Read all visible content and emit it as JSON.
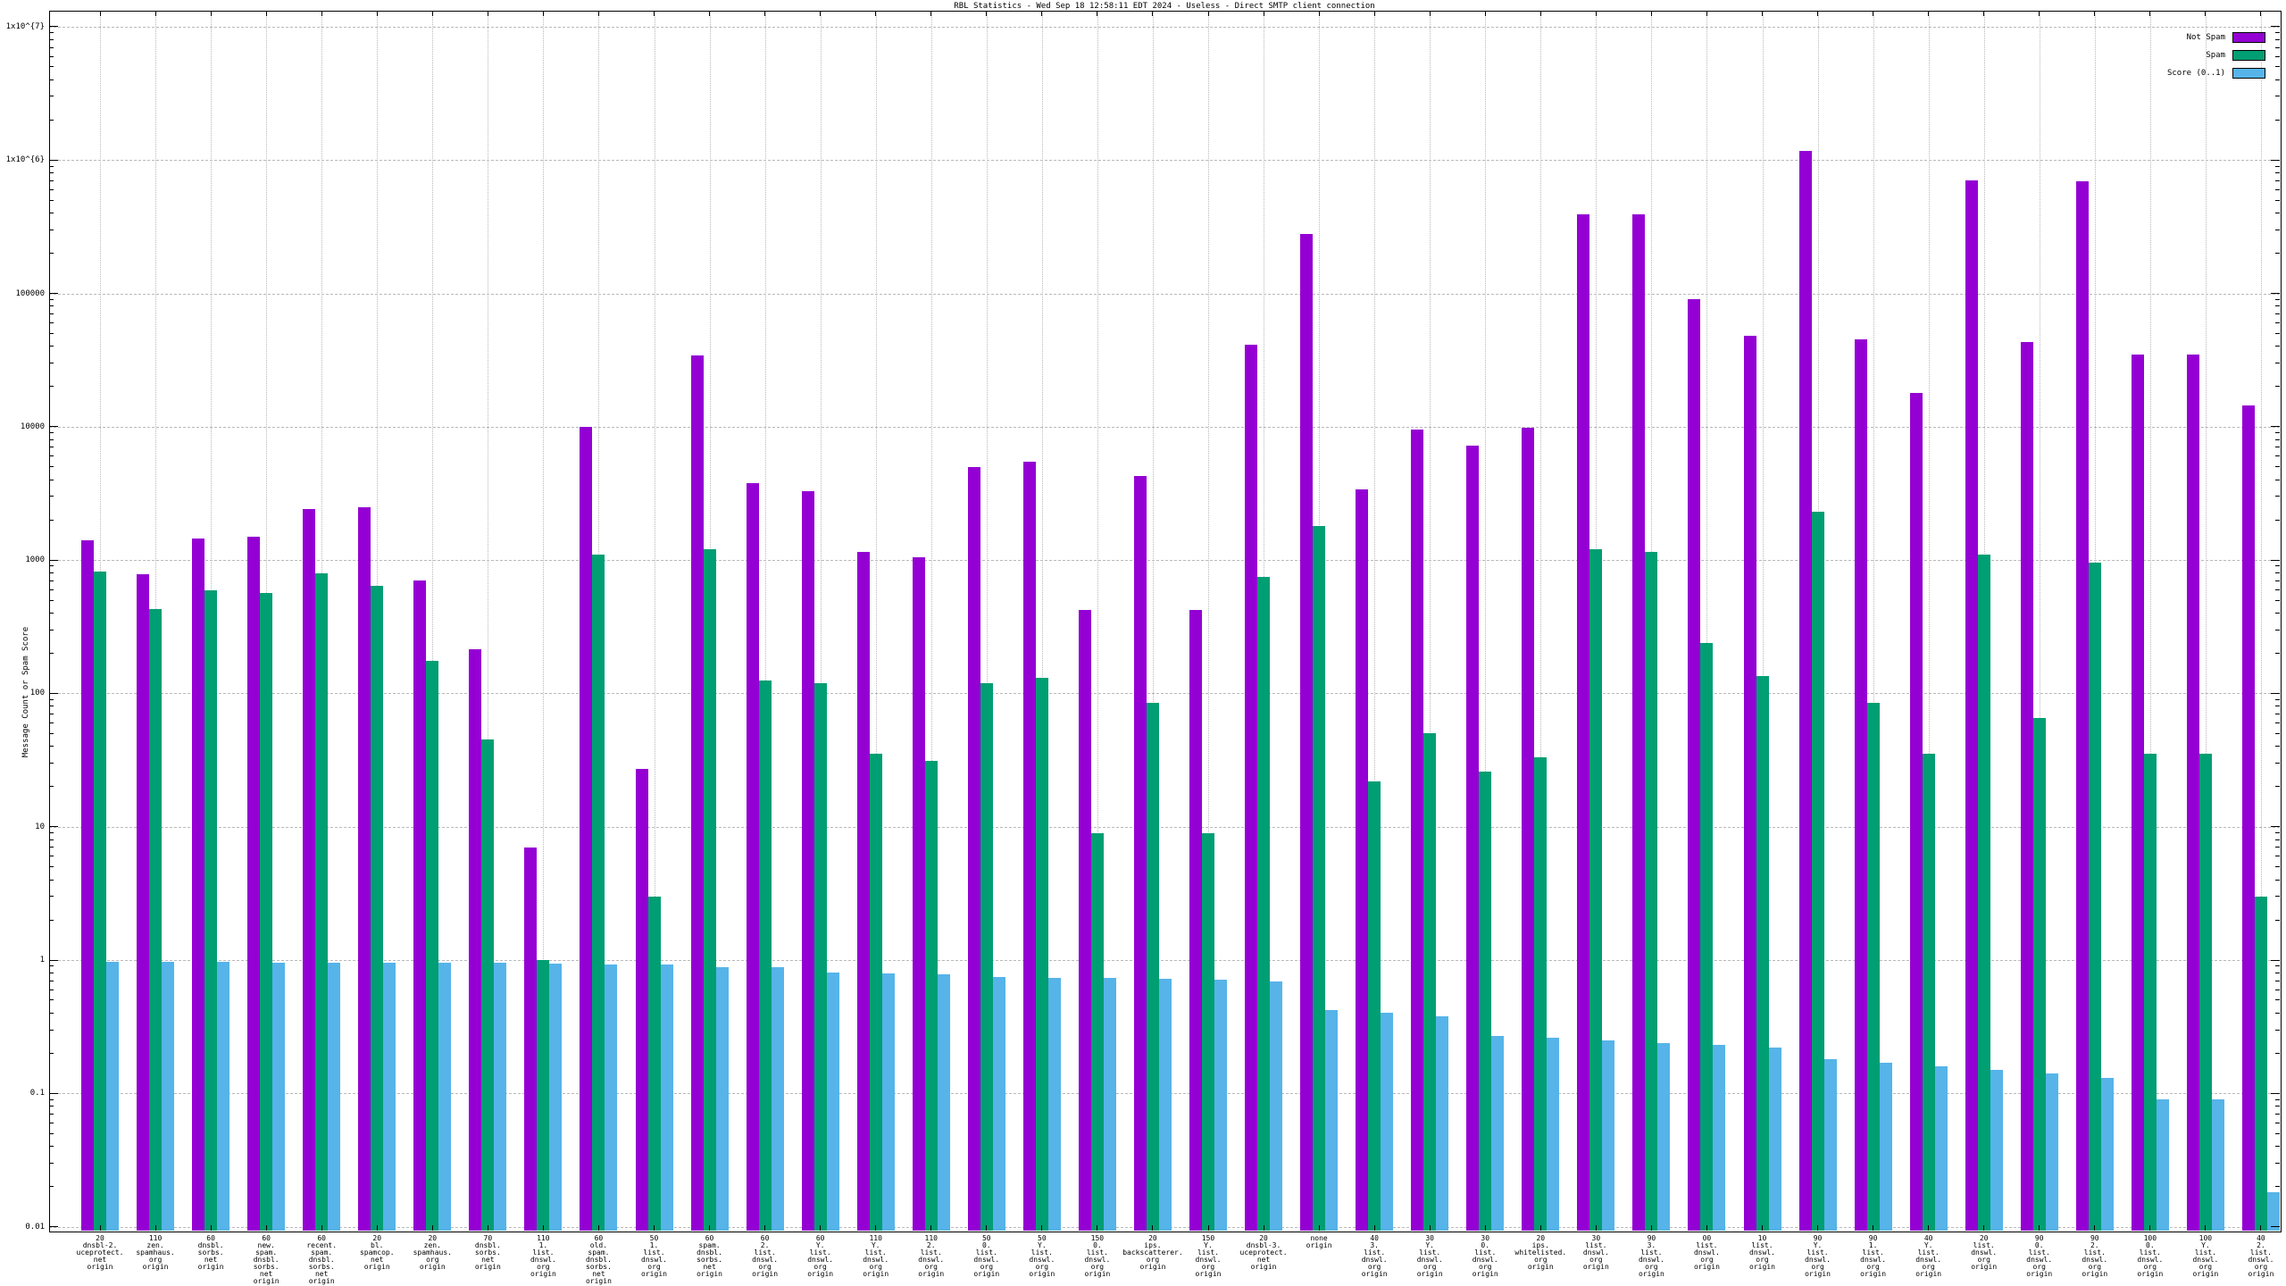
{
  "title": "RBL Statistics - Wed Sep 18 12:58:11 EDT 2024 - Useless - Direct SMTP client connection",
  "y_axis": {
    "label": "Message Count or Spam Score",
    "ticks": [
      {
        "value": 10000000,
        "label": "1x10^{7}"
      },
      {
        "value": 1000000,
        "label": "1x10^{6}"
      },
      {
        "value": 100000,
        "label": "100000"
      },
      {
        "value": 10000,
        "label": "10000"
      },
      {
        "value": 1000,
        "label": "1000"
      },
      {
        "value": 100,
        "label": "100"
      },
      {
        "value": 10,
        "label": "10"
      },
      {
        "value": 1,
        "label": "1"
      },
      {
        "value": 0.1,
        "label": "0.1"
      },
      {
        "value": 0.01,
        "label": "0.01"
      }
    ]
  },
  "legend": {
    "items": [
      {
        "label": "Not Spam",
        "color": "#9400d3"
      },
      {
        "label": "Spam",
        "color": "#009e73"
      },
      {
        "label": "Score (0..1)",
        "color": "#56b4e9"
      }
    ]
  },
  "chart_data": {
    "type": "bar",
    "y_scale": "log",
    "ylim": [
      0.0095,
      13000000
    ],
    "grid": true,
    "legend_position": "top-right",
    "title": "RBL Statistics - Wed Sep 18 12:58:11 EDT 2024 - Useless - Direct SMTP client connection",
    "xlabel": "",
    "ylabel": "Message Count or Spam Score",
    "categories": [
      "20\ndnsbl-2.\nuceprotect.\nnet\norigin",
      "110\nzen.\nspamhaus.\norg\norigin",
      "60\ndnsbl.\nsorbs.\nnet\norigin",
      "60\nnew.\nspam.\ndnsbl.\nsorbs.\nnet\norigin",
      "60\nrecent.\nspam.\ndnsbl.\nsorbs.\nnet\norigin",
      "20\nbl.\nspamcop.\nnet\norigin",
      "20\nzen.\nspamhaus.\norg\norigin",
      "70\ndnsbl.\nsorbs.\nnet\norigin",
      "110\n1.\nlist.\ndnswl.\norg\norigin",
      "60\nold.\nspam.\ndnsbl.\nsorbs.\nnet\norigin",
      "50\n1.\nlist.\ndnswl.\norg\norigin",
      "60\nspam.\ndnsbl.\nsorbs.\nnet\norigin",
      "60\n2.\nlist.\ndnswl.\norg\norigin",
      "60\nY.\nlist.\ndnswl.\norg\norigin",
      "110\nY.\nlist.\ndnswl.\norg\norigin",
      "110\n2.\nlist.\ndnswl.\norg\norigin",
      "50\n0.\nlist.\ndnswl.\norg\norigin",
      "50\nY.\nlist.\ndnswl.\norg\norigin",
      "150\n0.\nlist.\ndnswl.\norg\norigin",
      "20\nips.\nbackscatterer.\norg\norigin",
      "150\nY.\nlist.\ndnswl.\norg\norigin",
      "20\ndnsbl-3.\nuceprotect.\nnet\norigin",
      "none\norigin",
      "40\n3.\nlist.\ndnswl.\norg\norigin",
      "30\nY.\nlist.\ndnswl.\norg\norigin",
      "30\n0.\nlist.\ndnswl.\norg\norigin",
      "20\nips.\nwhitelisted.\norg\norigin",
      "30\nlist.\ndnswl.\norg\norigin",
      "90\n3.\nlist.\ndnswl.\norg\norigin",
      "00\nlist.\ndnswl.\norg\norigin",
      "10\nlist.\ndnswl.\norg\norigin",
      "90\nY.\nlist.\ndnswl.\norg\norigin",
      "90\n1.\nlist.\ndnswl.\norg\norigin",
      "40\nY.\nlist.\ndnswl.\norg\norigin",
      "20\nlist.\ndnswl.\norg\norigin",
      "90\n0.\nlist.\ndnswl.\norg\norigin",
      "90\n2.\nlist.\ndnswl.\norg\norigin",
      "100\n0.\nlist.\ndnswl.\norg\norigin",
      "100\nY.\nlist.\ndnswl.\norg\norigin",
      "40\n2.\nlist.\ndnswl.\norg\norigin"
    ],
    "series": [
      {
        "name": "Not Spam",
        "color": "#9400d3",
        "values": [
          1400,
          780,
          1450,
          1500,
          2400,
          2500,
          700,
          215,
          7,
          9900,
          27,
          34000,
          3800,
          3300,
          1150,
          1050,
          5000,
          5500,
          420,
          4300,
          420,
          41000,
          280000,
          3400,
          9500,
          7200,
          9800,
          390000,
          390000,
          90000,
          48000,
          1170000,
          45000,
          18000,
          700000,
          43000,
          690000,
          35000,
          35000,
          14500
        ]
      },
      {
        "name": "Spam",
        "color": "#009e73",
        "values": [
          820,
          430,
          590,
          570,
          800,
          640,
          175,
          45,
          1,
          1100,
          3,
          1200,
          125,
          120,
          35,
          31,
          120,
          130,
          9,
          85,
          9,
          750,
          1800,
          22,
          50,
          26,
          33,
          1200,
          1150,
          240,
          135,
          2300,
          85,
          35,
          1100,
          65,
          950,
          35,
          35,
          3
        ]
      },
      {
        "name": "Score (0..1)",
        "color": "#56b4e9",
        "values": [
          0.97,
          0.97,
          0.97,
          0.96,
          0.96,
          0.96,
          0.95,
          0.95,
          0.94,
          0.93,
          0.92,
          0.89,
          0.88,
          0.8,
          0.79,
          0.78,
          0.75,
          0.74,
          0.73,
          0.72,
          0.71,
          0.69,
          0.42,
          0.4,
          0.38,
          0.27,
          0.26,
          0.25,
          0.24,
          0.23,
          0.22,
          0.18,
          0.17,
          0.16,
          0.15,
          0.14,
          0.13,
          0.09,
          0.09,
          0.018
        ]
      }
    ]
  }
}
